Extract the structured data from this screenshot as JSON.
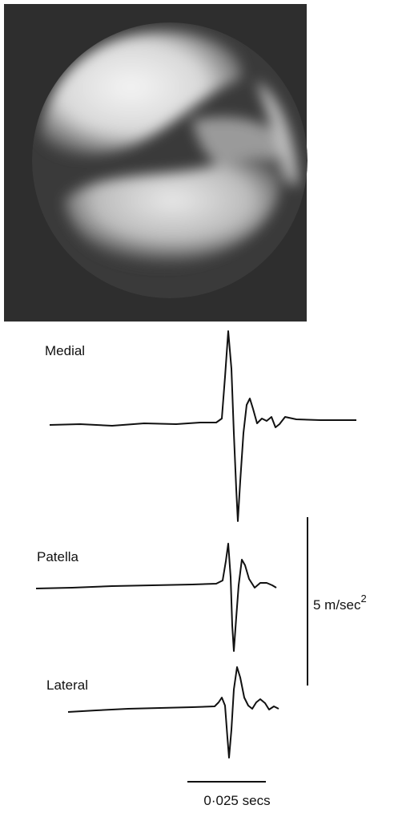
{
  "traces": [
    {
      "label": "Medial"
    },
    {
      "label": "Patella"
    },
    {
      "label": "Lateral"
    }
  ],
  "vertical_scale": {
    "label": "5 m/sec",
    "superscript": "2"
  },
  "horizontal_scale": {
    "label": "0·025 secs"
  }
}
